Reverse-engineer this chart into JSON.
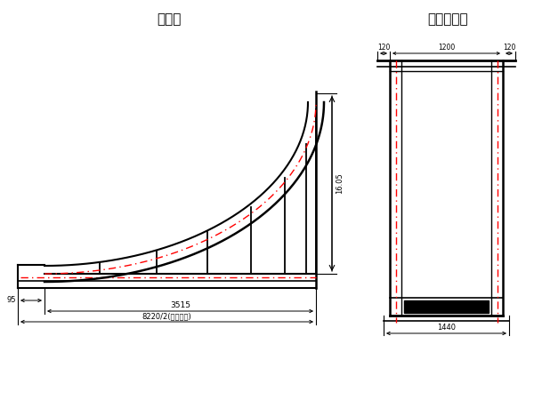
{
  "title_left": "半立面",
  "title_right": "跨中横断面",
  "bg_color": "#ffffff",
  "dim_95": "95",
  "dim_3515": "3515",
  "dim_8220": "8220/2(桥拱全长)",
  "dim_1605": "16.05",
  "cs_dim_120l": "120",
  "cs_dim_1200": "1200",
  "cs_dim_120r": "120",
  "cs_dim_1440": "1440"
}
